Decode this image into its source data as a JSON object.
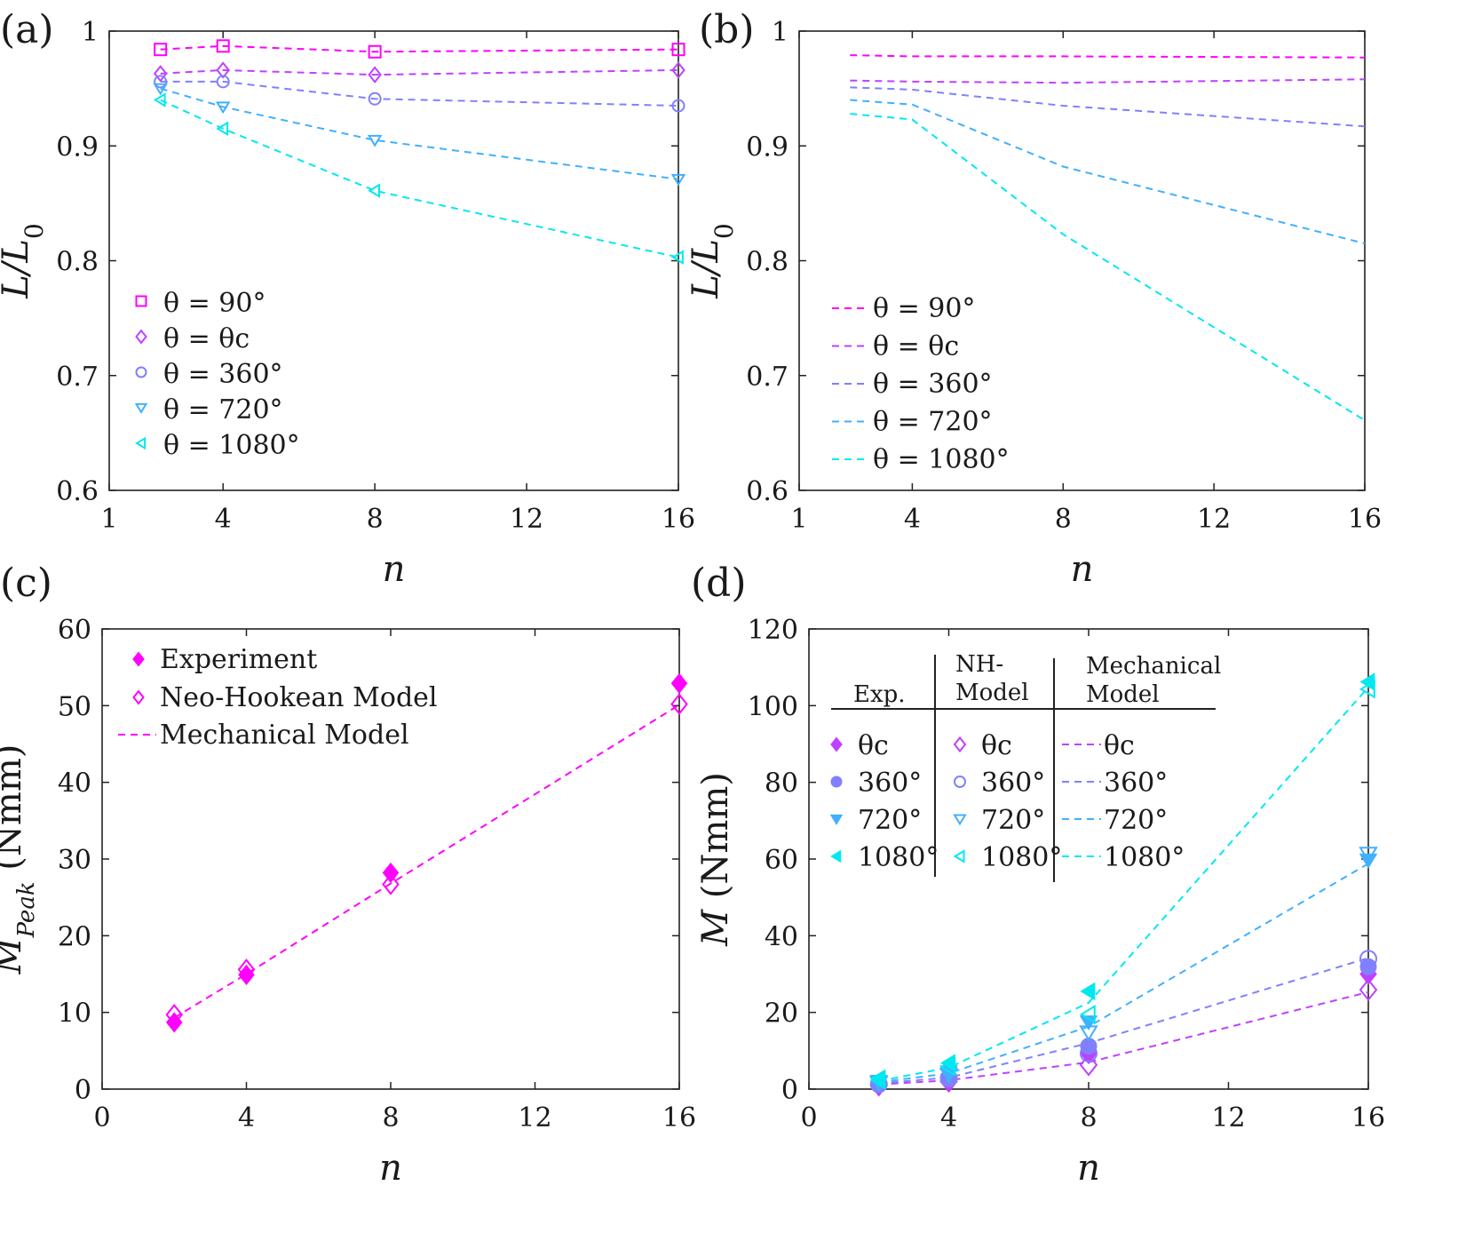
{
  "chart_data": [
    {
      "id": "a",
      "panel_label": "(a)",
      "type": "line",
      "markers": true,
      "title": "",
      "xlabel": "n",
      "ylabel": "L/L0",
      "ylabel_main": "L/L",
      "ylabel_sub": "0",
      "xlim": [
        1,
        16
      ],
      "ylim": [
        0.6,
        1
      ],
      "xticks": [
        "1",
        "4",
        "8",
        "12",
        "16"
      ],
      "xtick_values": [
        1,
        4,
        8,
        12,
        16
      ],
      "yticks": [
        "0.6",
        "0.7",
        "0.8",
        "0.9",
        "1"
      ],
      "ytick_values": [
        0.6,
        0.7,
        0.8,
        0.9,
        1
      ],
      "legend_location": "bottom-left",
      "series": [
        {
          "name": "θ = 90°",
          "legend_prefix": "θ = ",
          "legend_suffix": "90°",
          "color": "#ff00ff",
          "marker": "square",
          "x": [
            2,
            4,
            8,
            16
          ],
          "values": [
            0.984,
            0.987,
            0.982,
            0.984
          ]
        },
        {
          "name": "θ = θc",
          "legend_prefix": "θ = ",
          "legend_suffix": "θc",
          "color": "#c040ff",
          "marker": "diamond",
          "x": [
            2,
            4,
            8,
            16
          ],
          "values": [
            0.963,
            0.966,
            0.962,
            0.966
          ]
        },
        {
          "name": "θ = 360°",
          "legend_prefix": "θ = ",
          "legend_suffix": "360°",
          "color": "#8080ff",
          "marker": "circle",
          "x": [
            2,
            4,
            8,
            16
          ],
          "values": [
            0.956,
            0.956,
            0.941,
            0.935
          ]
        },
        {
          "name": "θ = 720°",
          "legend_prefix": "θ = ",
          "legend_suffix": "720°",
          "color": "#40b0ff",
          "marker": "triangle-down",
          "x": [
            2,
            4,
            8,
            16
          ],
          "values": [
            0.95,
            0.934,
            0.905,
            0.871
          ]
        },
        {
          "name": "θ = 1080°",
          "legend_prefix": "θ = ",
          "legend_suffix": "1080°",
          "color": "#00e8f0",
          "marker": "triangle-left",
          "x": [
            2,
            4,
            8,
            16
          ],
          "values": [
            0.94,
            0.915,
            0.861,
            0.803
          ]
        }
      ]
    },
    {
      "id": "b",
      "panel_label": "(b)",
      "type": "line",
      "markers": false,
      "title": "",
      "xlabel": "n",
      "ylabel": "L/L0",
      "ylabel_main": "L/L",
      "ylabel_sub": "0",
      "xlim": [
        1,
        16
      ],
      "ylim": [
        0.6,
        1
      ],
      "xticks": [
        "1",
        "4",
        "8",
        "12",
        "16"
      ],
      "xtick_values": [
        1,
        4,
        8,
        12,
        16
      ],
      "yticks": [
        "0.6",
        "0.7",
        "0.8",
        "0.9",
        "1"
      ],
      "ytick_values": [
        0.6,
        0.7,
        0.8,
        0.9,
        1
      ],
      "legend_location": "bottom-left",
      "series": [
        {
          "name": "θ = 90°",
          "legend_prefix": "θ = ",
          "legend_suffix": "90°",
          "color": "#ff00ff",
          "x": [
            2,
            4,
            8,
            16
          ],
          "values": [
            0.979,
            0.978,
            0.978,
            0.977
          ]
        },
        {
          "name": "θ = θc",
          "legend_prefix": "θ = ",
          "legend_suffix": "θc",
          "color": "#c040ff",
          "x": [
            2,
            4,
            8,
            16
          ],
          "values": [
            0.957,
            0.956,
            0.955,
            0.958
          ]
        },
        {
          "name": "θ = 360°",
          "legend_prefix": "θ = ",
          "legend_suffix": "360°",
          "color": "#8080ff",
          "x": [
            2,
            4,
            8,
            16
          ],
          "values": [
            0.951,
            0.949,
            0.935,
            0.917
          ]
        },
        {
          "name": "θ = 720°",
          "legend_prefix": "θ = ",
          "legend_suffix": "720°",
          "color": "#40b0ff",
          "x": [
            2,
            4,
            8,
            16
          ],
          "values": [
            0.94,
            0.936,
            0.882,
            0.815
          ]
        },
        {
          "name": "θ = 1080°",
          "legend_prefix": "θ = ",
          "legend_suffix": "1080°",
          "color": "#00e8f0",
          "x": [
            2,
            4,
            8,
            16
          ],
          "values": [
            0.928,
            0.923,
            0.823,
            0.661
          ]
        }
      ]
    },
    {
      "id": "c",
      "panel_label": "(c)",
      "type": "scatter",
      "title": "",
      "xlabel": "n",
      "ylabel": "MPeak (Nmm)",
      "ylabel_main": "M",
      "ylabel_sub": "Peak",
      "ylabel_unit": "(Nmm)",
      "xlim": [
        0,
        16
      ],
      "ylim": [
        0,
        60
      ],
      "xticks": [
        "0",
        "4",
        "8",
        "12",
        "16"
      ],
      "xtick_values": [
        0,
        4,
        8,
        12,
        16
      ],
      "yticks": [
        "0",
        "10",
        "20",
        "30",
        "40",
        "50",
        "60"
      ],
      "ytick_values": [
        0,
        10,
        20,
        30,
        40,
        50,
        60
      ],
      "legend_location": "top-left",
      "color": "#ff00ff",
      "series": [
        {
          "name": "Experiment",
          "style": "filled-diamond",
          "x": [
            2,
            4,
            8,
            16
          ],
          "values": [
            8.7,
            14.9,
            28.2,
            52.9
          ]
        },
        {
          "name": "Neo-Hookean Model",
          "style": "open-diamond",
          "x": [
            2,
            4,
            8,
            16
          ],
          "values": [
            9.7,
            15.6,
            26.7,
            50.2
          ]
        },
        {
          "name": "Mechanical Model",
          "style": "dashed-line",
          "x": [
            2,
            4,
            8,
            16
          ],
          "values": [
            9.3,
            15.0,
            26.8,
            50.1
          ]
        }
      ]
    },
    {
      "id": "d",
      "panel_label": "(d)",
      "type": "scatter",
      "title": "",
      "xlabel": "n",
      "ylabel": "M (Nmm)",
      "ylabel_main": "M",
      "ylabel_unit": "(Nmm)",
      "xlim": [
        0,
        16
      ],
      "ylim": [
        0,
        120
      ],
      "xticks": [
        "0",
        "4",
        "8",
        "12",
        "16"
      ],
      "xtick_values": [
        0,
        4,
        8,
        12,
        16
      ],
      "yticks": [
        "0",
        "20",
        "40",
        "60",
        "80",
        "100",
        "120"
      ],
      "ytick_values": [
        0,
        20,
        40,
        60,
        80,
        100,
        120
      ],
      "legend_location": "top-left",
      "legend_headers": {
        "exp": "Exp.",
        "nh_line1": "NH-",
        "nh_line2": "Model",
        "mech_line1": "Mechanical",
        "mech_line2": "Model"
      },
      "legend_rows": [
        "θc",
        "360°",
        "720°",
        "1080°"
      ],
      "groups": [
        {
          "name": "θc",
          "color": "#c040ff",
          "marker": "diamond",
          "x": [
            2,
            4,
            8,
            16
          ],
          "experiment": [
            1.2,
            2.6,
            9.3,
            30.0
          ],
          "nh_model": [
            1.0,
            2.0,
            6.3,
            25.9
          ],
          "mechanical_model": [
            1.2,
            2.3,
            7.0,
            25.3
          ]
        },
        {
          "name": "360°",
          "color": "#8080ff",
          "marker": "circle",
          "x": [
            2,
            4,
            8,
            16
          ],
          "experiment": [
            1.4,
            3.0,
            11.2,
            31.9
          ],
          "nh_model": [
            1.3,
            2.8,
            9.3,
            34.0
          ],
          "mechanical_model": [
            1.5,
            3.0,
            12.0,
            34.2
          ]
        },
        {
          "name": "720°",
          "color": "#40b0ff",
          "marker": "triangle-down",
          "x": [
            2,
            4,
            8,
            16
          ],
          "experiment": [
            2.0,
            4.5,
            17.5,
            59.7
          ],
          "nh_model": [
            1.6,
            3.8,
            14.8,
            61.4
          ],
          "mechanical_model": [
            1.8,
            4.1,
            16.3,
            58.8
          ]
        },
        {
          "name": "1080°",
          "color": "#00e8f0",
          "marker": "triangle-left",
          "x": [
            2,
            4,
            8,
            16
          ],
          "experiment": [
            2.8,
            6.8,
            25.5,
            106.2
          ],
          "nh_model": [
            2.3,
            5.8,
            19.5,
            104.3
          ],
          "mechanical_model": [
            2.1,
            5.6,
            22.5,
            104.8
          ]
        }
      ]
    }
  ]
}
